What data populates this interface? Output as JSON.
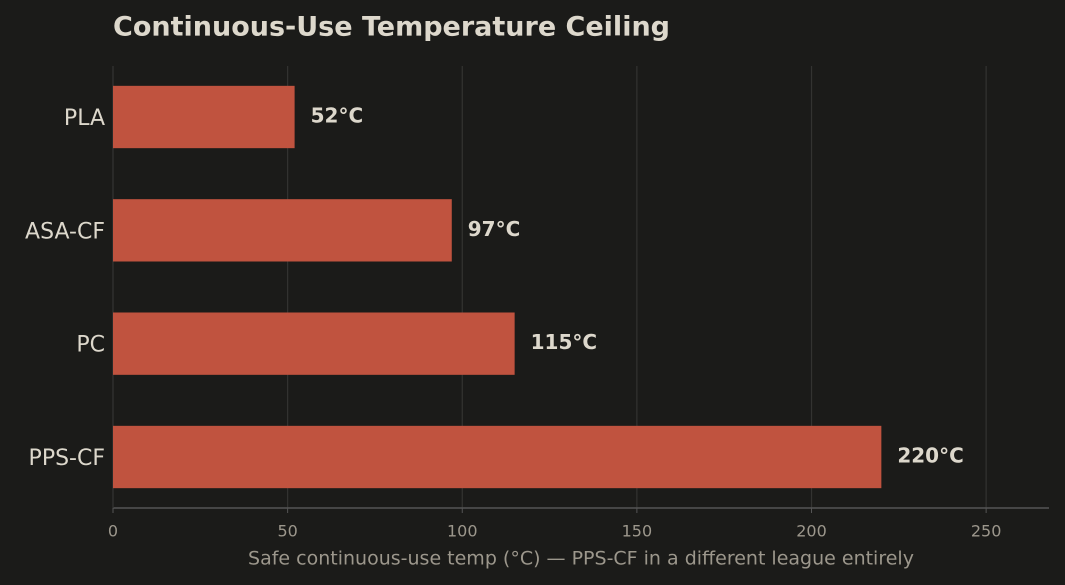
{
  "chart_data": {
    "type": "barh",
    "title": "Continuous-Use Temperature Ceiling",
    "x_label": "Safe continuous-use temp (°C) — PPS-CF in a different league entirely",
    "categories": [
      "PLA",
      "ASA-CF",
      "PC",
      "PPS-CF"
    ],
    "values": [
      52,
      97,
      115,
      220
    ],
    "value_labels": [
      "52°C",
      "97°C",
      "115°C",
      "220°C"
    ],
    "color": "#c0533f",
    "xlim": [
      0,
      268
    ],
    "xticks": [
      0,
      50,
      100,
      150,
      200,
      250
    ],
    "grid": true
  }
}
